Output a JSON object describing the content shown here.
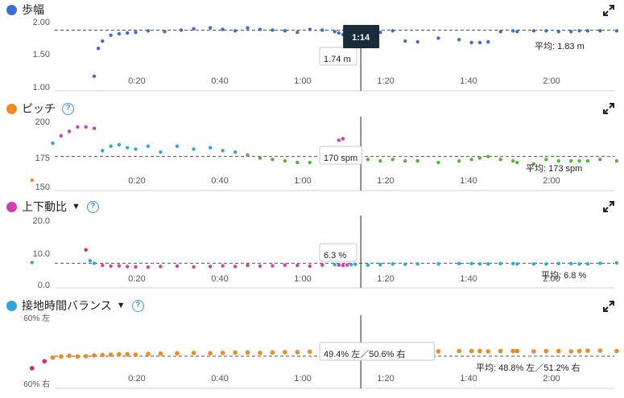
{
  "cursor": {
    "time_label": "1:14",
    "time": 74
  },
  "x_ticks": [
    "0:20",
    "0:40",
    "1:00",
    "1:20",
    "1:40",
    "2:00"
  ],
  "x_tick_values": [
    20,
    40,
    60,
    80,
    100,
    120
  ],
  "panels": [
    {
      "title": "歩幅",
      "dot_color": "#3b6fd8",
      "has_help": false,
      "has_caret": false,
      "y_labels": [
        "2.00",
        "1.50",
        "1.00"
      ],
      "tooltip": "1.74 m",
      "average_label": "平均: 1.83 m"
    },
    {
      "title": "ピッチ",
      "dot_color": "#f08a1c",
      "has_help": true,
      "has_caret": false,
      "y_labels": [
        "200",
        "175",
        "150"
      ],
      "tooltip": "170 spm",
      "average_label": "平均: 173 spm"
    },
    {
      "title": "上下動比",
      "dot_color": "#d23fb4",
      "has_help": true,
      "has_caret": true,
      "y_labels": [
        "20.0",
        "10.0",
        "0.0"
      ],
      "tooltip": "6.3 %",
      "average_label": "平均: 6.8 %"
    },
    {
      "title": "接地時間バランス",
      "dot_color": "#2ea7e0",
      "has_help": true,
      "has_caret": true,
      "y_labels": [
        "60% 左",
        "60% 右"
      ],
      "tooltip": "49.4% 左／50.6% 右",
      "average_label": "平均: 48.8% 左／51.2% 右"
    }
  ],
  "chart_data": [
    {
      "type": "scatter",
      "title": "歩幅",
      "ylabel": "",
      "unit": "m",
      "xlim": [
        0,
        133
      ],
      "ylim": [
        1.0,
        2.0
      ],
      "average": 1.83,
      "grid": false,
      "x": [
        0,
        1,
        2,
        4,
        6,
        8,
        10,
        13,
        17,
        21,
        24,
        28,
        31,
        34,
        37,
        40,
        43,
        46,
        49,
        52,
        55,
        58,
        59,
        60,
        61,
        62,
        63,
        66,
        69,
        72,
        75,
        78,
        83,
        88,
        91,
        93,
        95,
        98,
        101,
        102,
        106,
        109,
        112,
        115,
        117,
        119,
        122,
        126,
        130,
        131
      ],
      "y": [
        1.2,
        1.58,
        1.68,
        1.76,
        1.78,
        1.79,
        1.8,
        1.82,
        1.81,
        1.83,
        1.85,
        1.86,
        1.84,
        1.82,
        1.86,
        1.84,
        1.83,
        1.82,
        1.8,
        1.84,
        1.83,
        1.81,
        1.79,
        1.77,
        1.72,
        1.69,
        1.82,
        1.83,
        1.8,
        1.82,
        1.68,
        1.67,
        1.72,
        1.7,
        1.66,
        1.66,
        1.67,
        1.81,
        1.82,
        1.81,
        1.82,
        1.82,
        1.81,
        1.81,
        1.82,
        1.82,
        1.82,
        1.82,
        1.84,
        1.83
      ]
    },
    {
      "type": "scatter",
      "title": "ピッチ",
      "ylabel": "",
      "unit": "spm",
      "xlim": [
        -15,
        133
      ],
      "ylim": [
        150,
        200
      ],
      "average": 173,
      "grid": false,
      "x": [
        -15,
        -10,
        -8,
        -6,
        -4,
        -2,
        0,
        2,
        4,
        6,
        8,
        10,
        13,
        16,
        20,
        24,
        28,
        31,
        34,
        37,
        40,
        43,
        46,
        49,
        52,
        55,
        58,
        59,
        60,
        61,
        62,
        63,
        66,
        69,
        72,
        75,
        78,
        83,
        88,
        91,
        93,
        95,
        98,
        101,
        102,
        106,
        109,
        112,
        115,
        117,
        119,
        122,
        126,
        130,
        131
      ],
      "y": [
        157,
        182,
        187,
        190,
        193,
        193,
        192,
        177,
        180,
        181,
        179,
        178,
        180,
        176,
        180,
        178,
        179,
        177,
        176,
        174,
        172,
        171,
        170,
        169,
        169,
        170,
        171,
        184,
        185,
        170,
        171,
        170,
        171,
        170,
        171,
        170,
        170,
        169,
        170,
        171,
        172,
        173,
        171,
        170,
        169,
        168,
        171,
        170,
        170,
        170,
        170,
        171,
        170,
        160,
        154
      ]
    },
    {
      "type": "scatter",
      "title": "上下動比",
      "ylabel": "",
      "unit": "%",
      "xlim": [
        -15,
        133
      ],
      "ylim": [
        0,
        20
      ],
      "average": 6.8,
      "grid": false,
      "x": [
        -15,
        -2,
        -1,
        0,
        2,
        4,
        6,
        8,
        10,
        13,
        16,
        20,
        24,
        28,
        31,
        34,
        37,
        40,
        43,
        46,
        49,
        52,
        55,
        58,
        59,
        60,
        61,
        62,
        63,
        66,
        69,
        72,
        75,
        78,
        83,
        88,
        91,
        93,
        95,
        98,
        101,
        102,
        106,
        109,
        112,
        115,
        117,
        119,
        122,
        126,
        130,
        131
      ],
      "y": [
        7.0,
        10.5,
        7.5,
        6.8,
        6.2,
        6.0,
        6.1,
        5.9,
        5.8,
        5.7,
        5.9,
        6.0,
        5.8,
        5.9,
        6.1,
        5.9,
        6.2,
        6.0,
        6.1,
        6.3,
        6.2,
        6.0,
        6.3,
        6.4,
        6.3,
        6.2,
        6.3,
        6.4,
        6.5,
        6.3,
        6.4,
        6.6,
        6.5,
        6.6,
        6.6,
        6.7,
        6.7,
        6.6,
        6.6,
        6.7,
        6.7,
        6.6,
        6.6,
        6.6,
        6.7,
        6.7,
        6.6,
        6.6,
        6.8,
        6.9,
        7.1,
        7.0
      ]
    },
    {
      "type": "scatter",
      "title": "接地時間バランス",
      "ylabel": "",
      "unit": "%",
      "xlim": [
        -15,
        133
      ],
      "ylim": [
        -10,
        10
      ],
      "average": -1.2,
      "grid": false,
      "x": [
        -15,
        -12,
        -10,
        -8,
        -6,
        -4,
        -2,
        0,
        2,
        4,
        6,
        8,
        10,
        13,
        16,
        20,
        24,
        28,
        31,
        34,
        37,
        40,
        43,
        46,
        49,
        52,
        55,
        58,
        59,
        60,
        61,
        62,
        63,
        66,
        69,
        72,
        75,
        78,
        83,
        88,
        91,
        93,
        95,
        98,
        101,
        102,
        106,
        109,
        112,
        115,
        117,
        119,
        122,
        126,
        130,
        131
      ],
      "y": [
        -4.5,
        -2.6,
        -1.6,
        -1.3,
        -1.1,
        -1.3,
        -1.2,
        -1.0,
        -0.9,
        -0.8,
        -0.7,
        -0.7,
        -0.8,
        -0.6,
        -0.5,
        -0.4,
        -0.3,
        -0.4,
        -0.3,
        -0.2,
        -0.2,
        -0.3,
        -0.2,
        -0.1,
        -0.1,
        0.0,
        -0.1,
        0.0,
        0.1,
        0.2,
        0.0,
        -0.1,
        0.2,
        0.1,
        0.1,
        0.2,
        0.1,
        0.2,
        0.1,
        0.2,
        0.2,
        0.2,
        0.1,
        0.2,
        0.2,
        0.2,
        0.1,
        0.2,
        0.2,
        0.1,
        0.2,
        0.3,
        0.3,
        0.2,
        0.2,
        0.3
      ]
    }
  ]
}
